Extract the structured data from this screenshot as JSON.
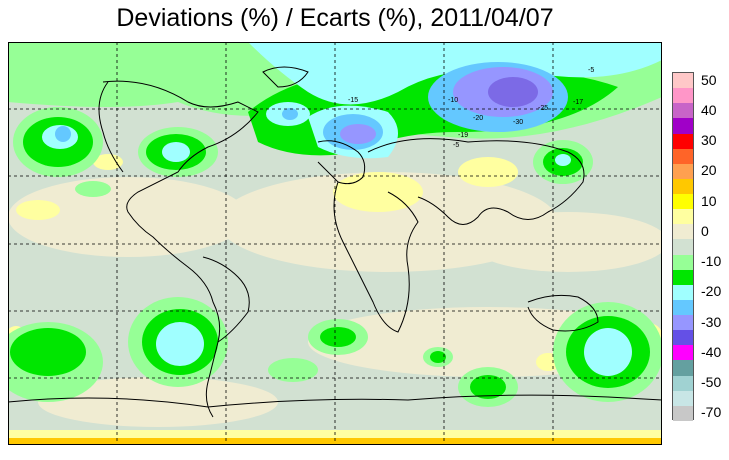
{
  "title": "Deviations (%) / Ecarts (%), 2011/04/07",
  "colorbar": {
    "levels": [
      {
        "label": "50",
        "color": "#ffc8c8"
      },
      {
        "label": "",
        "color": "#ff96c8"
      },
      {
        "label": "40",
        "color": "#c864c8"
      },
      {
        "label": "",
        "color": "#a000c8"
      },
      {
        "label": "30",
        "color": "#ff0000"
      },
      {
        "label": "",
        "color": "#ff6428"
      },
      {
        "label": "20",
        "color": "#ffa050"
      },
      {
        "label": "",
        "color": "#ffc800"
      },
      {
        "label": "10",
        "color": "#ffff00"
      },
      {
        "label": "",
        "color": "#ffffa0"
      },
      {
        "label": "0",
        "color": "#f0ecd2"
      },
      {
        "label": "",
        "color": "#d2e1d2"
      },
      {
        "label": "-10",
        "color": "#96ff96"
      },
      {
        "label": "",
        "color": "#00e600"
      },
      {
        "label": "-20",
        "color": "#a0ffff"
      },
      {
        "label": "",
        "color": "#64c8ff"
      },
      {
        "label": "-30",
        "color": "#9696ff"
      },
      {
        "label": "",
        "color": "#6450e6"
      },
      {
        "label": "-40",
        "color": "#ff00ff"
      },
      {
        "label": "",
        "color": "#64a0a0"
      },
      {
        "label": "-50",
        "color": "#a0d2d2"
      },
      {
        "label": "",
        "color": "#c8e6e6"
      },
      {
        "label": "-70",
        "color": "#c8c8c8"
      }
    ]
  },
  "contour_labels": [
    "-5",
    "-10",
    "-15",
    "-20",
    "-25",
    "-30",
    "-17",
    "-19"
  ]
}
